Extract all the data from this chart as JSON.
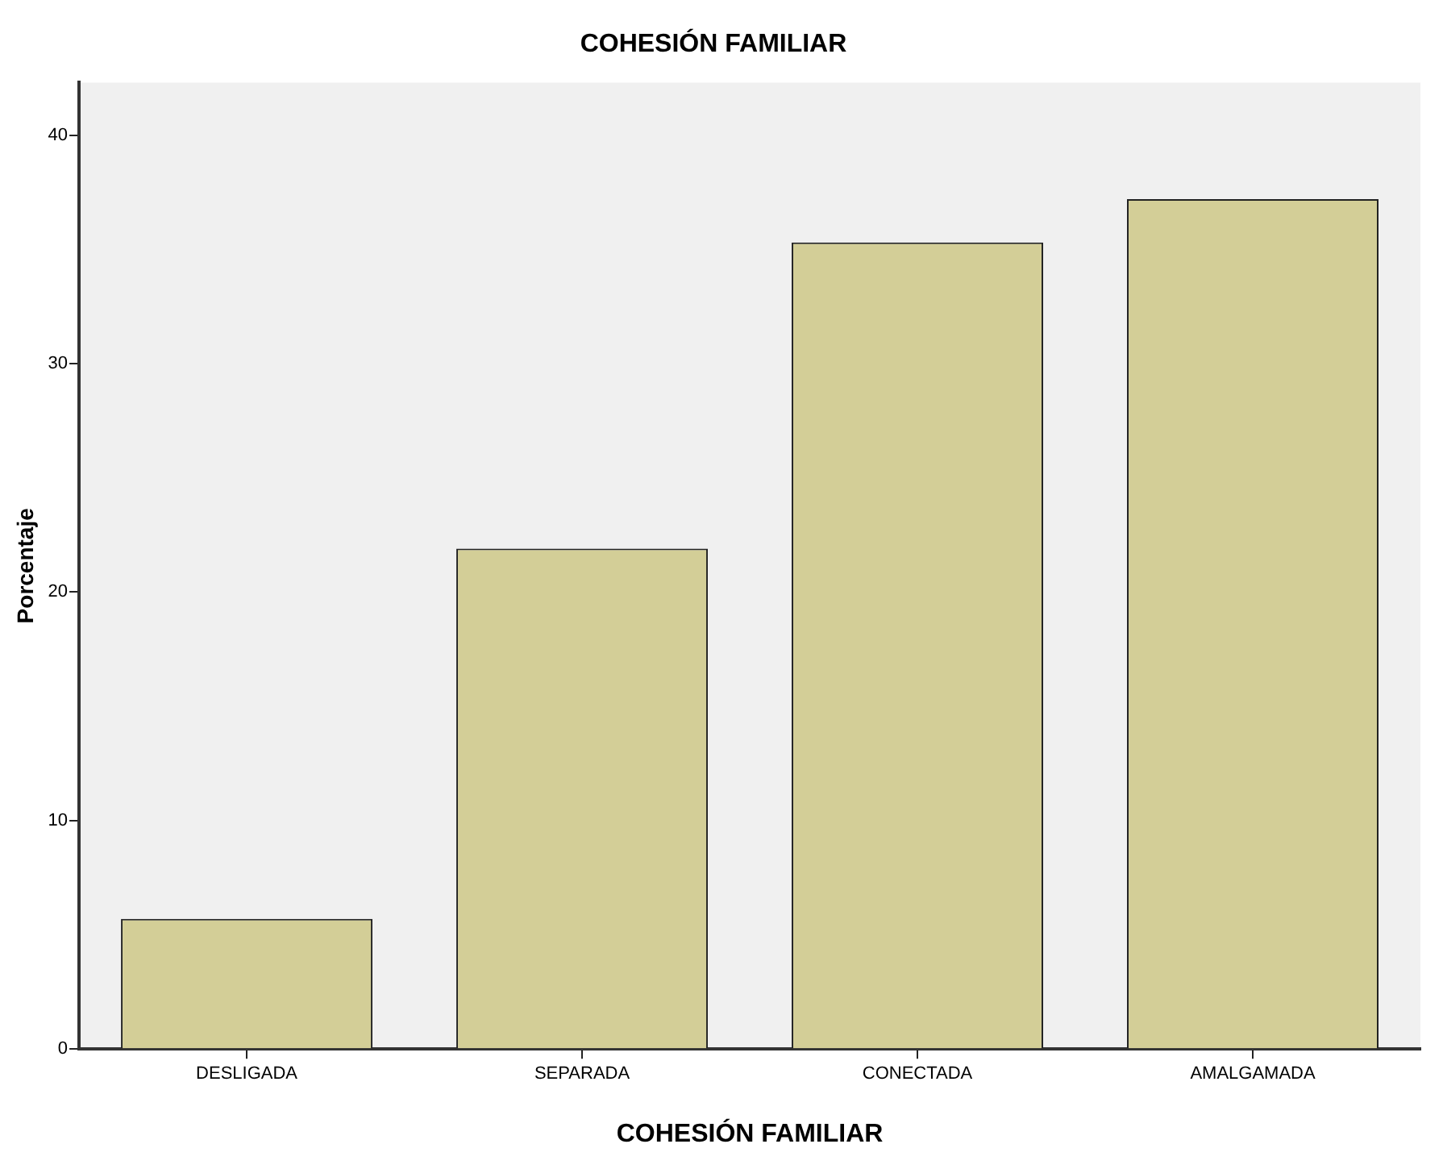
{
  "chart_data": {
    "type": "bar",
    "title": "COHESIÓN FAMILIAR",
    "xlabel": "COHESIÓN FAMILIAR",
    "ylabel": "Porcentaje",
    "categories": [
      "DESLIGADA",
      "SEPARADA",
      "CONECTADA",
      "AMALGAMADA"
    ],
    "values": [
      5.7,
      21.9,
      35.3,
      37.2
    ],
    "color": "#d3ce97",
    "ylim": [
      0,
      42.3
    ],
    "yticks": [
      0,
      10,
      20,
      30,
      40
    ],
    "grid": false
  }
}
